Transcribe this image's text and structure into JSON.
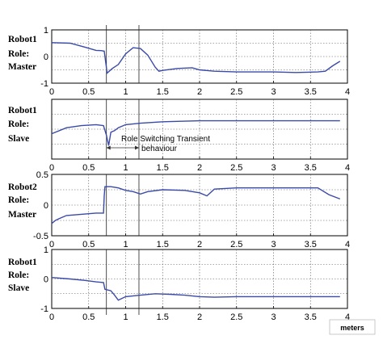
{
  "chart_data": [
    {
      "type": "line",
      "row_label": [
        "Robot1",
        "Role:",
        "Master"
      ],
      "xlim": [
        0,
        4
      ],
      "ylim": [
        -1,
        1
      ],
      "xticks": [
        "0",
        "0.5",
        "1",
        "1.5",
        "2",
        "2.5",
        "3",
        "3.5",
        "4"
      ],
      "yticks": [
        "-1",
        "0",
        "1"
      ],
      "grid": true,
      "series": [
        {
          "color": "#3a4aa8",
          "x": [
            0,
            0.25,
            0.45,
            0.6,
            0.67,
            0.71,
            0.75,
            0.82,
            0.9,
            1.0,
            1.1,
            1.2,
            1.3,
            1.4,
            1.45,
            1.5,
            1.7,
            1.9,
            2.0,
            2.2,
            2.5,
            2.8,
            3.0,
            3.3,
            3.6,
            3.7,
            3.8,
            3.9
          ],
          "y": [
            0.52,
            0.5,
            0.35,
            0.23,
            0.22,
            0.2,
            -0.62,
            -0.45,
            -0.3,
            0.1,
            0.33,
            0.3,
            0.05,
            -0.4,
            -0.55,
            -0.52,
            -0.45,
            -0.42,
            -0.5,
            -0.55,
            -0.58,
            -0.58,
            -0.58,
            -0.6,
            -0.58,
            -0.55,
            -0.35,
            -0.18
          ]
        }
      ]
    },
    {
      "type": "line",
      "row_label": [
        "Robot1",
        "Role:",
        "Slave"
      ],
      "xlim": [
        0,
        4
      ],
      "ylim": [
        -1,
        1
      ],
      "xticks": [
        "0",
        "0.5",
        "1",
        "1.5",
        "2",
        "2.5",
        "3",
        "3.5",
        "4"
      ],
      "yticks": [],
      "grid": true,
      "annotations": [
        "Role Switching Transient",
        "behaviour"
      ],
      "series": [
        {
          "color": "#3a4aa8",
          "x": [
            0,
            0.2,
            0.4,
            0.6,
            0.7,
            0.74,
            0.77,
            0.8,
            0.85,
            0.9,
            1.0,
            1.2,
            1.5,
            2.0,
            2.5,
            3.0,
            3.5,
            3.9
          ],
          "y": [
            -0.15,
            0.05,
            0.12,
            0.15,
            0.12,
            -0.2,
            -0.55,
            -0.1,
            -0.05,
            0.05,
            0.15,
            0.2,
            0.25,
            0.28,
            0.28,
            0.28,
            0.28,
            0.28
          ]
        }
      ]
    },
    {
      "type": "line",
      "row_label": [
        "Robot2",
        "Role:",
        "Master"
      ],
      "xlim": [
        0,
        4
      ],
      "ylim": [
        -0.5,
        0.5
      ],
      "xticks": [
        "0",
        "0.5",
        "1",
        "1.5",
        "2",
        "2.5",
        "3",
        "3.5",
        "4"
      ],
      "yticks": [
        "-0.5",
        "0",
        "0.5"
      ],
      "grid": true,
      "series": [
        {
          "color": "#3a4aa8",
          "x": [
            0,
            0.05,
            0.1,
            0.2,
            0.4,
            0.6,
            0.7,
            0.71,
            0.72,
            0.8,
            0.9,
            1.0,
            1.1,
            1.2,
            1.3,
            1.5,
            1.8,
            2.0,
            2.1,
            2.2,
            2.5,
            3.0,
            3.5,
            3.6,
            3.75,
            3.9
          ],
          "y": [
            -0.3,
            -0.25,
            -0.22,
            -0.17,
            -0.15,
            -0.13,
            -0.13,
            0.15,
            0.3,
            0.3,
            0.28,
            0.24,
            0.22,
            0.18,
            0.22,
            0.25,
            0.24,
            0.2,
            0.15,
            0.26,
            0.28,
            0.28,
            0.28,
            0.28,
            0.17,
            0.1
          ]
        }
      ]
    },
    {
      "type": "line",
      "row_label": [
        "Robot1",
        "Role:",
        "Slave"
      ],
      "xlim": [
        0,
        4
      ],
      "ylim": [
        -1,
        1
      ],
      "xticks": [
        "0",
        "0.5",
        "1",
        "1.5",
        "2",
        "2.5",
        "3",
        "3.5",
        "4"
      ],
      "yticks": [
        "-1",
        "0",
        "1"
      ],
      "grid": true,
      "series": [
        {
          "color": "#3a4aa8",
          "x": [
            0,
            0.25,
            0.45,
            0.6,
            0.7,
            0.72,
            0.8,
            0.85,
            0.9,
            1.0,
            1.2,
            1.4,
            1.6,
            1.8,
            2.0,
            2.2,
            2.5,
            3.0,
            3.5,
            3.9
          ],
          "y": [
            0.05,
            0.0,
            -0.05,
            -0.1,
            -0.12,
            -0.35,
            -0.4,
            -0.55,
            -0.72,
            -0.6,
            -0.55,
            -0.5,
            -0.52,
            -0.55,
            -0.6,
            -0.62,
            -0.6,
            -0.6,
            -0.6,
            -0.6
          ]
        }
      ]
    }
  ],
  "xunits": "meters"
}
